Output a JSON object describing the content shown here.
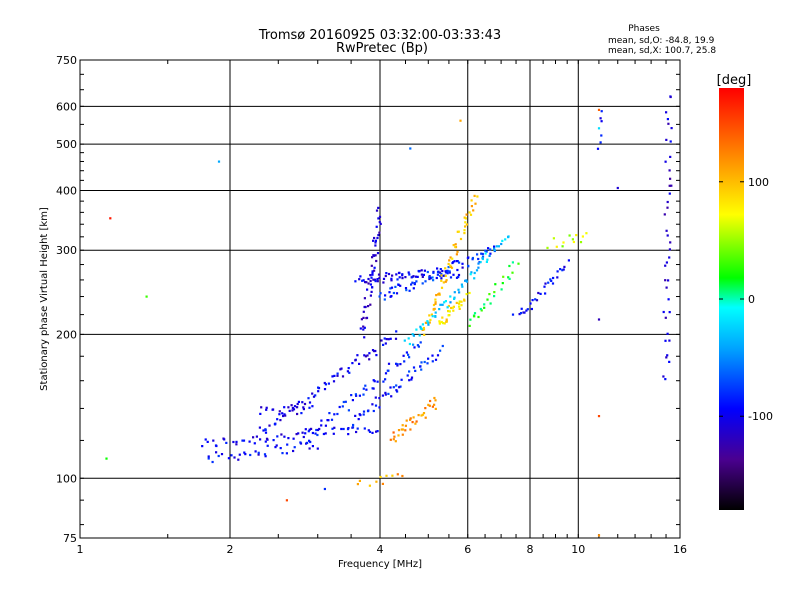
{
  "chart_data": {
    "type": "scatter",
    "title": "Tromsø 20160925 03:32:00-03:33:43",
    "subtitle": "RwPretec (Bp)",
    "stats": {
      "heading": "Phases",
      "line1": "mean, sd,O: -84.8, 19.9",
      "line2": "mean, sd,X: 100.7, 25.8"
    },
    "xlabel": "Frequency [MHz]",
    "ylabel": "Stationary phase Virtual Height [km]",
    "x_scale": "log",
    "y_scale": "log",
    "xlim": [
      1,
      16
    ],
    "ylim": [
      75,
      750
    ],
    "x_ticks": [
      1,
      2,
      4,
      6,
      8,
      10,
      16
    ],
    "x_tick_labels": [
      "1",
      "2",
      "4",
      "6",
      "8",
      "10",
      "16"
    ],
    "y_ticks": [
      75,
      100,
      200,
      300,
      400,
      500,
      600,
      750
    ],
    "y_tick_labels": [
      "75",
      "100",
      "200",
      "300",
      "400",
      "500",
      "600",
      "750"
    ],
    "grid": true,
    "colorbar": {
      "label": "[deg]",
      "range": [
        -180,
        180
      ],
      "ticks": [
        100,
        0,
        -100
      ],
      "tick_labels": [
        "100",
        "0",
        "-100"
      ]
    },
    "traces": [
      {
        "name": "o-low-1",
        "phase": -100,
        "f0": 1.75,
        "f1": 4.0,
        "h0": 118,
        "h1": 128,
        "n": 55
      },
      {
        "name": "o-low-2",
        "phase": -95,
        "f0": 1.8,
        "f1": 3.0,
        "h0": 110,
        "h1": 118,
        "n": 35
      },
      {
        "name": "o-low-3",
        "phase": -105,
        "f0": 2.3,
        "f1": 2.9,
        "h0": 138,
        "h1": 140,
        "n": 18
      },
      {
        "name": "o-rise-1",
        "phase": -100,
        "f0": 2.3,
        "f1": 4.3,
        "h0": 125,
        "h1": 200,
        "n": 70
      },
      {
        "name": "o-rise-2",
        "phase": -90,
        "f0": 2.8,
        "f1": 4.8,
        "h0": 120,
        "h1": 190,
        "n": 55
      },
      {
        "name": "o-rise-3",
        "phase": -85,
        "f0": 3.5,
        "f1": 5.3,
        "h0": 130,
        "h1": 185,
        "n": 50
      },
      {
        "name": "o-vert-1",
        "phase": -110,
        "f0": 3.7,
        "f1": 4.0,
        "h0": 200,
        "h1": 360,
        "n": 50
      },
      {
        "name": "o-f2-1",
        "phase": -100,
        "f0": 3.6,
        "f1": 5.8,
        "h0": 260,
        "h1": 270,
        "n": 70
      },
      {
        "name": "o-f2-2",
        "phase": -80,
        "f0": 4.0,
        "f1": 6.8,
        "h0": 240,
        "h1": 300,
        "n": 70
      },
      {
        "name": "x-1",
        "phase": 100,
        "f0": 4.9,
        "f1": 6.2,
        "h0": 200,
        "h1": 390,
        "n": 60
      },
      {
        "name": "x-2",
        "phase": 120,
        "f0": 4.2,
        "f1": 5.2,
        "h0": 120,
        "h1": 145,
        "n": 35
      },
      {
        "name": "x-3",
        "phase": 85,
        "f0": 5.2,
        "f1": 6.0,
        "h0": 210,
        "h1": 240,
        "n": 30
      },
      {
        "name": "mid-1",
        "phase": -30,
        "f0": 4.5,
        "f1": 7.2,
        "h0": 190,
        "h1": 320,
        "n": 60
      },
      {
        "name": "mid-2",
        "phase": 20,
        "f0": 6.0,
        "f1": 7.5,
        "h0": 210,
        "h1": 280,
        "n": 25
      },
      {
        "name": "far-1",
        "phase": -95,
        "f0": 7.5,
        "f1": 9.5,
        "h0": 215,
        "h1": 280,
        "n": 30
      },
      {
        "name": "far-2",
        "phase": 60,
        "f0": 8.8,
        "f1": 10.5,
        "h0": 310,
        "h1": 320,
        "n": 12
      },
      {
        "name": "edge-1",
        "phase": -110,
        "f0": 15.0,
        "f1": 15.2,
        "h0": 160,
        "h1": 640,
        "n": 40
      },
      {
        "name": "edge-2",
        "phase": -100,
        "f0": 11.0,
        "f1": 11.1,
        "h0": 480,
        "h1": 600,
        "n": 6
      },
      {
        "name": "low-y",
        "phase": 110,
        "f0": 3.6,
        "f1": 4.5,
        "h0": 97,
        "h1": 100,
        "n": 10
      }
    ],
    "points": [
      {
        "x": 1.15,
        "y": 350,
        "phase": 170
      },
      {
        "x": 1.36,
        "y": 240,
        "phase": 30
      },
      {
        "x": 1.13,
        "y": 110,
        "phase": 20
      },
      {
        "x": 1.9,
        "y": 460,
        "phase": -40
      },
      {
        "x": 2.6,
        "y": 90,
        "phase": 150
      },
      {
        "x": 11.0,
        "y": 590,
        "phase": 140
      },
      {
        "x": 11.0,
        "y": 540,
        "phase": -20
      },
      {
        "x": 11.0,
        "y": 215,
        "phase": -120
      },
      {
        "x": 11.0,
        "y": 135,
        "phase": 150
      },
      {
        "x": 11.0,
        "y": 76,
        "phase": 120
      },
      {
        "x": 12.0,
        "y": 405,
        "phase": -110
      },
      {
        "x": 5.8,
        "y": 560,
        "phase": 110
      },
      {
        "x": 4.6,
        "y": 490,
        "phase": -60
      },
      {
        "x": 3.1,
        "y": 95,
        "phase": -80
      }
    ]
  }
}
